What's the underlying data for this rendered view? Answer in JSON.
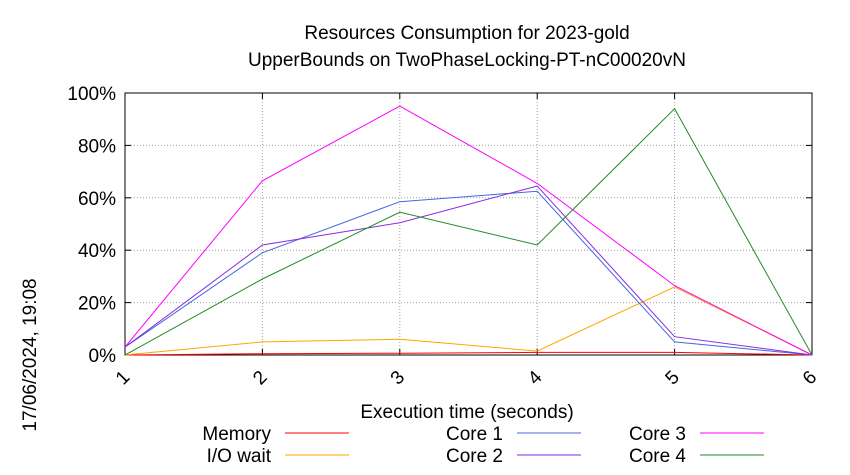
{
  "chart_data": {
    "type": "line",
    "title": "Resources Consumption for 2023-gold",
    "subtitle": "UpperBounds on TwoPhaseLocking-PT-nC00020vN",
    "xlabel": "Execution time (seconds)",
    "ylabel": "",
    "side_label": "17/06/2024, 19:08",
    "x": [
      1,
      2,
      3,
      4,
      5,
      6
    ],
    "x_tick_labels": [
      "1",
      "2",
      "3",
      "4",
      "5",
      "6"
    ],
    "xlim": [
      1,
      6
    ],
    "ylim": [
      0,
      100
    ],
    "y_tick_values": [
      0,
      20,
      40,
      60,
      80,
      100
    ],
    "y_tick_labels": [
      "0%",
      "20%",
      "40%",
      "60%",
      "80%",
      "100%"
    ],
    "grid": true,
    "legend_position": "bottom",
    "series": [
      {
        "name": "Memory",
        "color": "#ff0000",
        "values": [
          0,
          0.5,
          0.7,
          1,
          1,
          0
        ]
      },
      {
        "name": "I/O wait",
        "color": "#ffa500",
        "values": [
          0,
          5,
          6,
          1.5,
          26,
          0
        ]
      },
      {
        "name": "Core 1",
        "color": "#4169e1",
        "values": [
          3,
          39,
          58.5,
          62.5,
          5,
          0
        ]
      },
      {
        "name": "Core 2",
        "color": "#8a2be2",
        "values": [
          3,
          42,
          50.5,
          64.5,
          7,
          0
        ]
      },
      {
        "name": "Core 3",
        "color": "#ff00ff",
        "values": [
          3,
          66.5,
          95,
          65.5,
          26.5,
          0
        ]
      },
      {
        "name": "Core 4",
        "color": "#228b22",
        "values": [
          0,
          29,
          54.5,
          42,
          94,
          0
        ]
      }
    ]
  }
}
